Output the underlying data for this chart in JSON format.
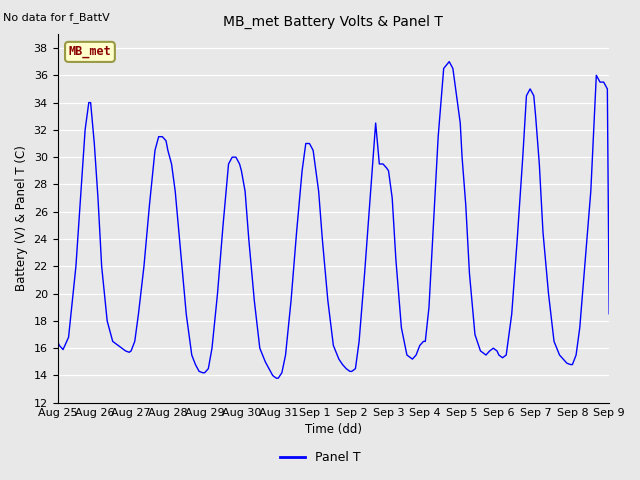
{
  "title": "MB_met Battery Volts & Panel T",
  "no_data_text": "No data for f_BattV",
  "legend_box_text": "MB_met",
  "legend_box_facecolor": "#ffffcc",
  "legend_box_edgecolor": "#999944",
  "legend_box_textcolor": "#8b0000",
  "ylabel": "Battery (V) & Panel T (C)",
  "xlabel": "Time (dd)",
  "ylim": [
    12,
    39
  ],
  "yticks": [
    12,
    14,
    16,
    18,
    20,
    22,
    24,
    26,
    28,
    30,
    32,
    34,
    36,
    38
  ],
  "line_color": "#0000ff",
  "line_label": "Panel T",
  "fig_facecolor": "#e8e8e8",
  "plot_bg_color": "#e8e8e8",
  "xtick_labels": [
    "Aug 25",
    "Aug 26",
    "Aug 27",
    "Aug 28",
    "Aug 29",
    "Aug 30",
    "Aug 31",
    "Sep 1",
    "Sep 2",
    "Sep 3",
    "Sep 4",
    "Sep 5",
    "Sep 6",
    "Sep 7",
    "Sep 8",
    "Sep 9"
  ],
  "xtick_positions": [
    0,
    1,
    2,
    3,
    4,
    5,
    6,
    7,
    8,
    9,
    10,
    11,
    12,
    13,
    14,
    15
  ],
  "panel_t_x": [
    0.0,
    0.05,
    0.15,
    0.3,
    0.5,
    0.65,
    0.75,
    0.85,
    0.9,
    1.0,
    1.1,
    1.2,
    1.35,
    1.5,
    1.65,
    1.75,
    1.85,
    1.95,
    2.0,
    2.1,
    2.2,
    2.35,
    2.5,
    2.65,
    2.75,
    2.85,
    2.95,
    3.0,
    3.1,
    3.2,
    3.35,
    3.5,
    3.65,
    3.75,
    3.85,
    3.95,
    4.0,
    4.1,
    4.2,
    4.35,
    4.5,
    4.65,
    4.75,
    4.85,
    4.95,
    5.0,
    5.1,
    5.2,
    5.35,
    5.5,
    5.65,
    5.75,
    5.85,
    5.95,
    6.0,
    6.1,
    6.2,
    6.35,
    6.5,
    6.65,
    6.75,
    6.85,
    6.95,
    7.0,
    7.1,
    7.2,
    7.35,
    7.5,
    7.65,
    7.75,
    7.85,
    7.95,
    8.0,
    8.1,
    8.2,
    8.35,
    8.5,
    8.65,
    8.75,
    8.85,
    8.95,
    9.0,
    9.1,
    9.2,
    9.35,
    9.5,
    9.65,
    9.75,
    9.85,
    9.95,
    10.0,
    10.1,
    10.2,
    10.35,
    10.5,
    10.65,
    10.75,
    10.85,
    10.95,
    11.0,
    11.1,
    11.2,
    11.35,
    11.5,
    11.65,
    11.75,
    11.85,
    11.95,
    12.0,
    12.1,
    12.2,
    12.35,
    12.5,
    12.65,
    12.75,
    12.85,
    12.95,
    13.0,
    13.1,
    13.2,
    13.35,
    13.5,
    13.65,
    13.75,
    13.85,
    13.95,
    14.0,
    14.1,
    14.2,
    14.35,
    14.5,
    14.65,
    14.75,
    14.85,
    14.95,
    15.0
  ],
  "panel_t_y": [
    16.5,
    16.2,
    15.9,
    16.8,
    22.0,
    28.0,
    32.0,
    34.0,
    34.0,
    31.0,
    27.0,
    22.0,
    18.0,
    16.5,
    16.2,
    16.0,
    15.8,
    15.7,
    15.8,
    16.5,
    18.5,
    22.0,
    26.5,
    30.5,
    31.5,
    31.5,
    31.2,
    30.5,
    29.5,
    27.5,
    23.0,
    18.5,
    15.5,
    14.8,
    14.3,
    14.2,
    14.2,
    14.5,
    16.0,
    20.0,
    25.0,
    29.5,
    30.0,
    30.0,
    29.5,
    29.0,
    27.5,
    24.0,
    19.5,
    16.0,
    15.0,
    14.5,
    14.0,
    13.8,
    13.8,
    14.2,
    15.5,
    19.5,
    24.5,
    29.0,
    31.0,
    31.0,
    30.5,
    29.5,
    27.5,
    24.0,
    19.5,
    16.2,
    15.2,
    14.8,
    14.5,
    14.3,
    14.3,
    14.5,
    16.5,
    21.5,
    27.0,
    32.5,
    29.5,
    29.5,
    29.2,
    29.0,
    27.0,
    22.5,
    17.5,
    15.5,
    15.2,
    15.5,
    16.2,
    16.5,
    16.5,
    19.0,
    24.0,
    31.5,
    36.5,
    37.0,
    36.5,
    34.5,
    32.5,
    30.0,
    26.5,
    21.5,
    17.0,
    15.8,
    15.5,
    15.8,
    16.0,
    15.8,
    15.5,
    15.3,
    15.5,
    18.5,
    24.0,
    30.0,
    34.5,
    35.0,
    34.5,
    33.0,
    29.5,
    24.5,
    20.0,
    16.5,
    15.5,
    15.2,
    14.9,
    14.8,
    14.8,
    15.5,
    17.5,
    22.5,
    27.5,
    36.0,
    35.5,
    35.5,
    35.0,
    18.5
  ]
}
